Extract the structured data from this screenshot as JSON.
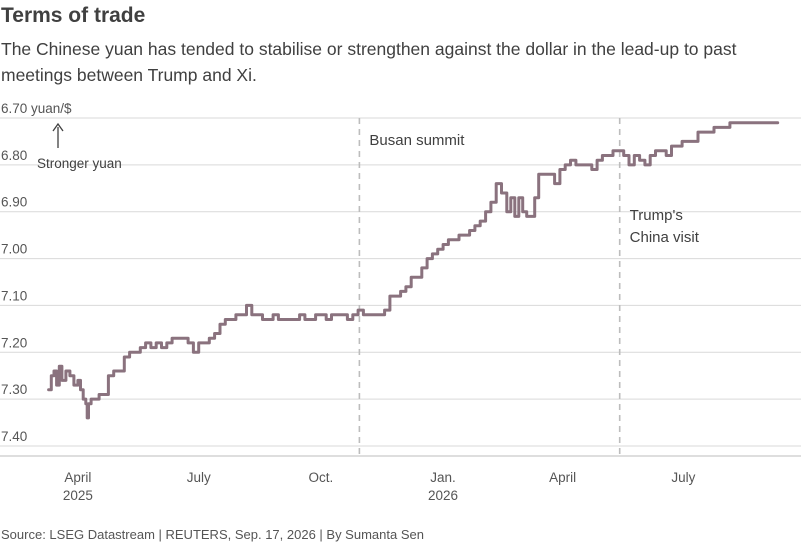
{
  "title": "Terms of trade",
  "subtitle": "The Chinese yuan has tended to stabilise or strengthen against the dollar in the lead-up to past meetings between Trump and Xi.",
  "source": "Source: LSEG Datastream | REUTERS, Sep. 17, 2026 | By Sumanta Sen",
  "colors": {
    "line": "#8a727e",
    "grid": "#d9d9d9",
    "event_line": "#bdbdbd",
    "text": "#404040"
  },
  "chart_data": {
    "type": "line",
    "y_unit_label": "6.70 yuan/$",
    "ylim": [
      6.7,
      7.4
    ],
    "y_inverted": true,
    "yticks": [
      6.7,
      6.8,
      6.9,
      7.0,
      7.1,
      7.2,
      7.3,
      7.4
    ],
    "ytick_labels": [
      "6.70 yuan/$",
      "6.80",
      "6.90",
      "7.00",
      "7.10",
      "7.20",
      "7.30",
      "7.40"
    ],
    "xlim": [
      "2025-03-05",
      "2026-09-20"
    ],
    "xticks": [
      {
        "date": "2025-04-01",
        "label": "April",
        "sub": "2025"
      },
      {
        "date": "2025-07-01",
        "label": "July",
        "sub": ""
      },
      {
        "date": "2025-10-01",
        "label": "Oct.",
        "sub": ""
      },
      {
        "date": "2026-01-01",
        "label": "Jan.",
        "sub": "2026"
      },
      {
        "date": "2026-04-01",
        "label": "April",
        "sub": ""
      },
      {
        "date": "2026-07-01",
        "label": "July",
        "sub": ""
      }
    ],
    "grid": "horizontal",
    "direction_note": "Stronger yuan",
    "events": [
      {
        "date": "2025-10-30",
        "label_lines": [
          "Busan summit"
        ]
      },
      {
        "date": "2026-05-14",
        "label_lines": [
          "Trump's",
          "China visit"
        ]
      }
    ],
    "series": [
      {
        "x": [
          "2025-03-10",
          "2025-03-12",
          "2025-03-14",
          "2025-03-16",
          "2025-03-18",
          "2025-03-20",
          "2025-03-23",
          "2025-03-26",
          "2025-03-29",
          "2025-04-01",
          "2025-04-03",
          "2025-04-05",
          "2025-04-07",
          "2025-04-08",
          "2025-04-09",
          "2025-04-11",
          "2025-04-14",
          "2025-04-17",
          "2025-04-20",
          "2025-04-24",
          "2025-04-28",
          "2025-05-02",
          "2025-05-06",
          "2025-05-10",
          "2025-05-14",
          "2025-05-18",
          "2025-05-22",
          "2025-05-26",
          "2025-05-30",
          "2025-06-03",
          "2025-06-07",
          "2025-06-11",
          "2025-06-15",
          "2025-06-19",
          "2025-06-23",
          "2025-06-27",
          "2025-07-01",
          "2025-07-05",
          "2025-07-09",
          "2025-07-13",
          "2025-07-17",
          "2025-07-21",
          "2025-07-25",
          "2025-07-29",
          "2025-08-02",
          "2025-08-06",
          "2025-08-10",
          "2025-08-14",
          "2025-08-18",
          "2025-08-22",
          "2025-08-26",
          "2025-08-30",
          "2025-09-03",
          "2025-09-07",
          "2025-09-11",
          "2025-09-15",
          "2025-09-19",
          "2025-09-23",
          "2025-09-27",
          "2025-10-01",
          "2025-10-05",
          "2025-10-09",
          "2025-10-13",
          "2025-10-17",
          "2025-10-21",
          "2025-10-25",
          "2025-10-29",
          "2025-11-02",
          "2025-11-06",
          "2025-11-10",
          "2025-11-14",
          "2025-11-18",
          "2025-11-22",
          "2025-11-26",
          "2025-11-30",
          "2025-12-04",
          "2025-12-08",
          "2025-12-12",
          "2025-12-16",
          "2025-12-20",
          "2025-12-24",
          "2025-12-28",
          "2026-01-01",
          "2026-01-05",
          "2026-01-09",
          "2026-01-13",
          "2026-01-17",
          "2026-01-21",
          "2026-01-25",
          "2026-01-29",
          "2026-02-02",
          "2026-02-06",
          "2026-02-10",
          "2026-02-14",
          "2026-02-18",
          "2026-02-21",
          "2026-02-24",
          "2026-02-27",
          "2026-03-02",
          "2026-03-05",
          "2026-03-08",
          "2026-03-11",
          "2026-03-14",
          "2026-03-18",
          "2026-03-22",
          "2026-03-26",
          "2026-03-30",
          "2026-04-03",
          "2026-04-07",
          "2026-04-11",
          "2026-04-15",
          "2026-04-19",
          "2026-04-23",
          "2026-04-27",
          "2026-05-01",
          "2026-05-05",
          "2026-05-09",
          "2026-05-13",
          "2026-05-17",
          "2026-05-21",
          "2026-05-25",
          "2026-05-29",
          "2026-06-02",
          "2026-06-06",
          "2026-06-10",
          "2026-06-14",
          "2026-06-18",
          "2026-06-22",
          "2026-06-26",
          "2026-06-30",
          "2026-07-04",
          "2026-07-08",
          "2026-07-12",
          "2026-07-16",
          "2026-07-20",
          "2026-07-24",
          "2026-07-28",
          "2026-08-01",
          "2026-08-05",
          "2026-08-09",
          "2026-08-13",
          "2026-08-17",
          "2026-08-21",
          "2026-08-25",
          "2026-08-29",
          "2026-09-02",
          "2026-09-06",
          "2026-09-10"
        ],
        "y": [
          7.28,
          7.25,
          7.24,
          7.27,
          7.23,
          7.26,
          7.24,
          7.25,
          7.27,
          7.26,
          7.28,
          7.3,
          7.31,
          7.34,
          7.31,
          7.3,
          7.3,
          7.29,
          7.29,
          7.25,
          7.24,
          7.24,
          7.21,
          7.2,
          7.2,
          7.19,
          7.18,
          7.19,
          7.18,
          7.19,
          7.18,
          7.17,
          7.17,
          7.17,
          7.18,
          7.2,
          7.18,
          7.18,
          7.17,
          7.16,
          7.14,
          7.13,
          7.13,
          7.12,
          7.12,
          7.1,
          7.12,
          7.12,
          7.13,
          7.13,
          7.12,
          7.13,
          7.13,
          7.13,
          7.13,
          7.12,
          7.13,
          7.13,
          7.12,
          7.12,
          7.13,
          7.12,
          7.12,
          7.12,
          7.13,
          7.12,
          7.11,
          7.12,
          7.12,
          7.12,
          7.12,
          7.11,
          7.08,
          7.08,
          7.07,
          7.06,
          7.04,
          7.04,
          7.02,
          7.0,
          6.99,
          6.98,
          6.97,
          6.96,
          6.96,
          6.95,
          6.95,
          6.94,
          6.93,
          6.92,
          6.9,
          6.88,
          6.84,
          6.86,
          6.9,
          6.87,
          6.91,
          6.87,
          6.9,
          6.91,
          6.91,
          6.87,
          6.82,
          6.82,
          6.82,
          6.84,
          6.81,
          6.8,
          6.79,
          6.8,
          6.8,
          6.8,
          6.81,
          6.79,
          6.78,
          6.78,
          6.77,
          6.77,
          6.78,
          6.8,
          6.78,
          6.79,
          6.8,
          6.78,
          6.77,
          6.77,
          6.78,
          6.76,
          6.76,
          6.75,
          6.75,
          6.75,
          6.73,
          6.73,
          6.73,
          6.72,
          6.72,
          6.72,
          6.71,
          6.71,
          6.71,
          6.71,
          6.71,
          6.71,
          6.71,
          6.71,
          6.71,
          6.71
        ]
      }
    ]
  }
}
